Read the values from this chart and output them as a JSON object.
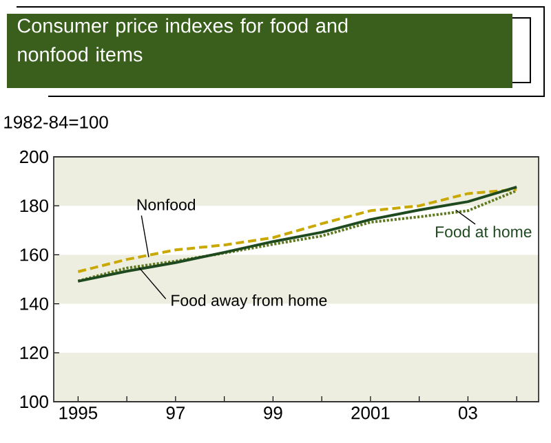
{
  "chart_data": {
    "type": "line",
    "title": "Consumer price indexes for food and nonfood items",
    "ylabel": "1982-84=100",
    "x": [
      1995,
      1996,
      1997,
      1998,
      1999,
      2000,
      2001,
      2002,
      2003,
      2004
    ],
    "series": [
      {
        "name": "Nonfood",
        "color": "#c9a800",
        "line_style": "dashed",
        "values": [
          153.1,
          158.1,
          162,
          164,
          167,
          172.7,
          178,
          180,
          185,
          186.7
        ]
      },
      {
        "name": "Food at home",
        "color": "#1f4a1f",
        "line_style": "solid",
        "values": [
          149.2,
          153.3,
          156.8,
          161,
          165.4,
          169.2,
          174.4,
          178.3,
          181.7,
          187.7
        ]
      },
      {
        "name": "Food away from home",
        "color": "#5f7a1e",
        "line_style": "dotted",
        "values": [
          149.3,
          154.6,
          157.4,
          160.7,
          164.3,
          167.7,
          173.3,
          175.5,
          178,
          186.2
        ]
      }
    ],
    "xlim": [
      1994.5,
      2004.45
    ],
    "ylim": [
      100,
      200
    ],
    "xticks": [
      {
        "value": 1995,
        "label": "1995"
      },
      {
        "value": 1996,
        "label": null
      },
      {
        "value": 1997,
        "label": "97"
      },
      {
        "value": 1998,
        "label": null
      },
      {
        "value": 1999,
        "label": "99"
      },
      {
        "value": 2000,
        "label": null
      },
      {
        "value": 2001,
        "label": "2001"
      },
      {
        "value": 2002,
        "label": null
      },
      {
        "value": 2003,
        "label": "03"
      },
      {
        "value": 2004,
        "label": null
      }
    ],
    "yticks": [
      100,
      120,
      140,
      160,
      180,
      200
    ],
    "bands": [
      {
        "axis": "y",
        "from": 100,
        "to": 120,
        "color": "#eeeee0"
      },
      {
        "axis": "y",
        "from": 140,
        "to": 160,
        "color": "#eeeee0"
      },
      {
        "axis": "y",
        "from": 180,
        "to": 200,
        "color": "#eeeee0"
      }
    ],
    "legend": false,
    "grid": false,
    "marker": "none"
  }
}
